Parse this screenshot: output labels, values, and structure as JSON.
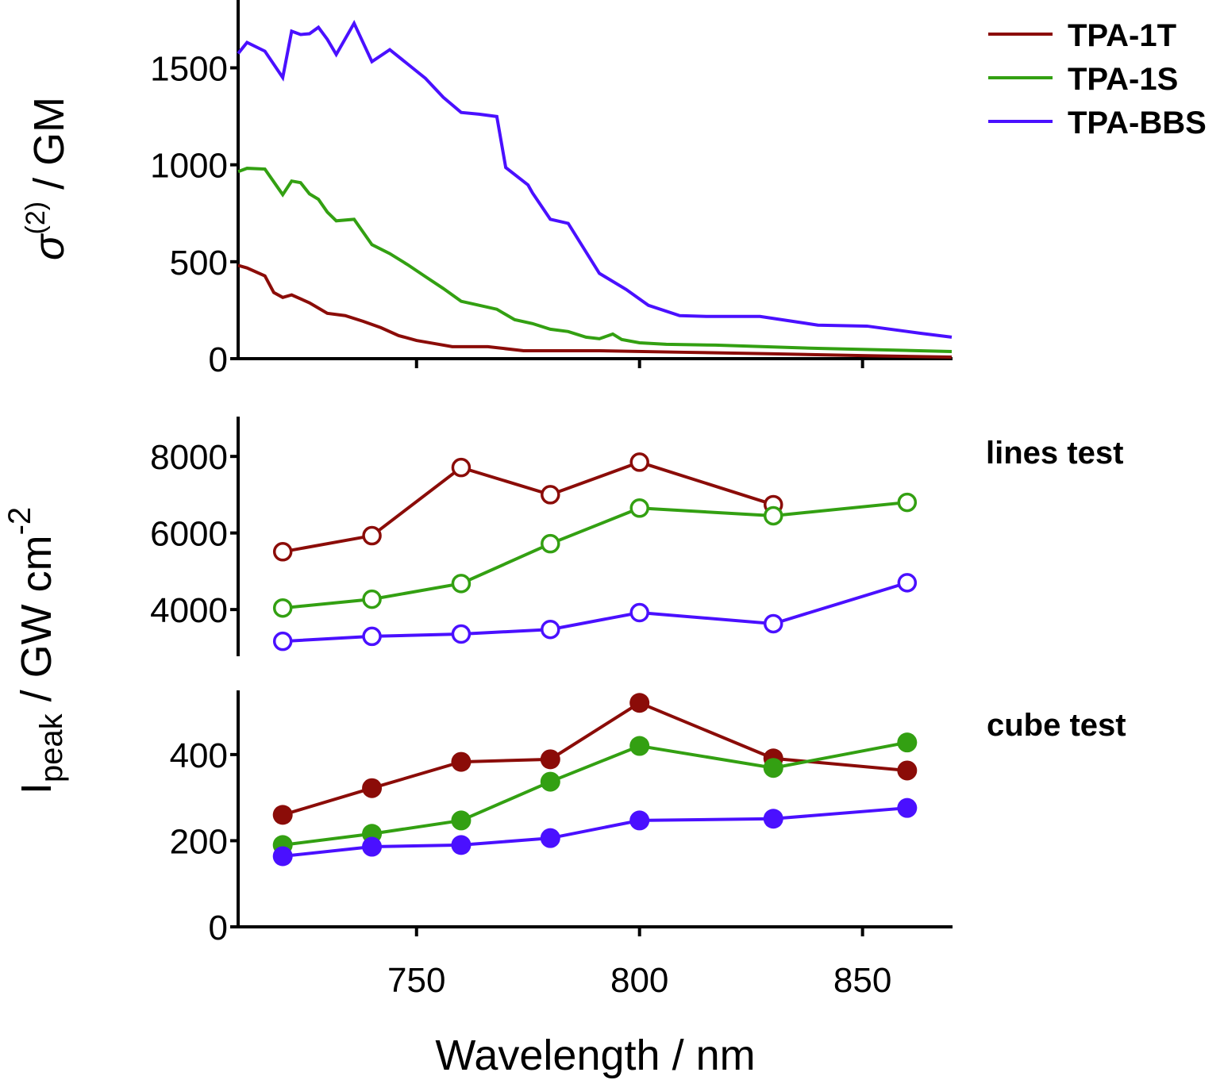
{
  "chart_data": [
    {
      "type": "line",
      "panel": "top",
      "ylabel": {
        "main": "σ",
        "sup": "(2)",
        "rest": " / GM"
      },
      "xlim": [
        710,
        870
      ],
      "ylim": [
        0,
        1850
      ],
      "yticks": [
        0,
        500,
        1000,
        1500
      ],
      "xticks": [
        750,
        800,
        850
      ],
      "grid": false,
      "legend_placement": "top-right",
      "series": [
        {
          "name": "TPA-1T",
          "color": "#8b0c08",
          "x": [
            710,
            712,
            716,
            718,
            720,
            722,
            726,
            730,
            734,
            738,
            742,
            746,
            750,
            754,
            758,
            766,
            774,
            791,
            810,
            830,
            850,
            870
          ],
          "y": [
            481,
            468,
            427,
            341,
            316,
            329,
            288,
            234,
            222,
            193,
            160,
            119,
            94,
            78,
            62,
            62,
            41,
            41,
            33,
            25,
            16,
            8
          ]
        },
        {
          "name": "TPA-1S",
          "color": "#33a012",
          "x": [
            710,
            712,
            716,
            720,
            722,
            724,
            726,
            728,
            730,
            732,
            736,
            740,
            744,
            748,
            752,
            756,
            760,
            768,
            772,
            776,
            780,
            784,
            788,
            791,
            794,
            796,
            800,
            806,
            817,
            840,
            870
          ],
          "y": [
            965,
            982,
            978,
            846,
            916,
            908,
            850,
            822,
            756,
            711,
            719,
            588,
            542,
            485,
            423,
            362,
            296,
            255,
            201,
            181,
            152,
            140,
            111,
            103,
            127,
            99,
            82,
            74,
            70,
            53,
            37
          ]
        },
        {
          "name": "TPA-BBS",
          "color": "#4a10ff",
          "x": [
            710,
            712,
            716,
            720,
            722,
            724,
            726,
            728,
            730,
            732,
            736,
            740,
            744,
            748,
            752,
            756,
            760,
            764,
            768,
            770,
            775,
            776,
            780,
            784,
            791,
            797,
            802,
            809,
            815,
            827,
            840,
            851,
            863,
            870
          ],
          "y": [
            1574,
            1631,
            1586,
            1450,
            1689,
            1672,
            1676,
            1709,
            1647,
            1569,
            1730,
            1532,
            1594,
            1520,
            1446,
            1348,
            1270,
            1261,
            1249,
            986,
            896,
            855,
            719,
            698,
            440,
            357,
            275,
            222,
            218,
            218,
            173,
            168,
            131,
            111
          ]
        }
      ]
    },
    {
      "type": "line",
      "panel": "middle",
      "annotation": "lines test",
      "marker": "open-circle",
      "xlim": [
        710,
        870
      ],
      "ylim": [
        2780,
        9040
      ],
      "yticks": [
        4000,
        6000,
        8000
      ],
      "x": [
        720,
        740,
        760,
        780,
        800,
        830,
        860
      ],
      "series": [
        {
          "name": "TPA-1T",
          "color": "#8b0c08",
          "y": [
            5510,
            5930,
            7710,
            7000,
            7850,
            6740,
            null
          ]
        },
        {
          "name": "TPA-1S",
          "color": "#33a012",
          "y": [
            4040,
            4270,
            4680,
            5720,
            6650,
            6450,
            6800
          ]
        },
        {
          "name": "TPA-BBS",
          "color": "#4a10ff",
          "y": [
            3170,
            3300,
            3360,
            3480,
            3920,
            3630,
            4700
          ]
        }
      ]
    },
    {
      "type": "line",
      "panel": "bottom",
      "annotation": "cube test",
      "marker": "filled-circle",
      "xlim": [
        710,
        870
      ],
      "ylim": [
        0,
        549
      ],
      "yticks": [
        0,
        200,
        400
      ],
      "xticks": [
        750,
        800,
        850
      ],
      "xlabel": "Wavelength / nm",
      "x": [
        720,
        740,
        760,
        780,
        800,
        830,
        860
      ],
      "series": [
        {
          "name": "TPA-1T",
          "color": "#8b0c08",
          "y": [
            260,
            322,
            383,
            389,
            520,
            391,
            363
          ]
        },
        {
          "name": "TPA-1S",
          "color": "#33a012",
          "y": [
            190,
            216,
            247,
            337,
            420,
            369,
            428
          ]
        },
        {
          "name": "TPA-BBS",
          "color": "#4a10ff",
          "y": [
            164,
            186,
            190,
            206,
            247,
            251,
            276
          ]
        }
      ]
    }
  ],
  "shared_ylabel": {
    "main": "I",
    "sub": "peak",
    "rest": " / GW cm",
    "sup": "-2"
  }
}
